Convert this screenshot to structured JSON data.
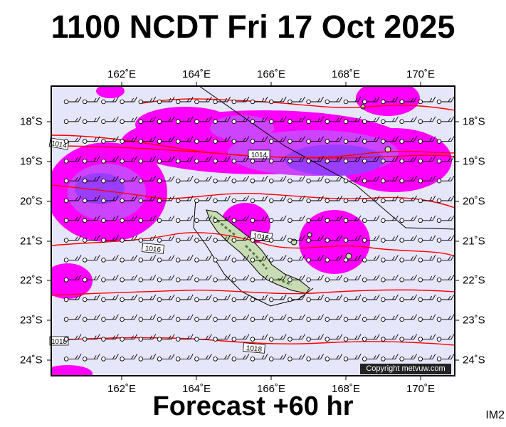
{
  "title": "1100 NCDT Fri 17 Oct 2025",
  "footer": "Forecast +60 hr",
  "image_tag": "IM2",
  "copyright": "Copyright metvuw.com",
  "map": {
    "lon_labels": [
      "162˚E",
      "164˚E",
      "166˚E",
      "168˚E",
      "170˚E"
    ],
    "lat_labels": [
      "18˚S",
      "19˚S",
      "20˚S",
      "21˚S",
      "22˚S",
      "23˚S",
      "24˚S"
    ],
    "isobar_labels": [
      "1014",
      "1014",
      "1016",
      "1016",
      "1018",
      "1018"
    ],
    "colors": {
      "ocean": "#e6e6fa",
      "rain_light": "#ff00ff",
      "rain_medium": "#cc33ff",
      "rain_heavy": "#9933ff",
      "isobar": "#ff0000",
      "land": "#c8dcb4"
    }
  }
}
